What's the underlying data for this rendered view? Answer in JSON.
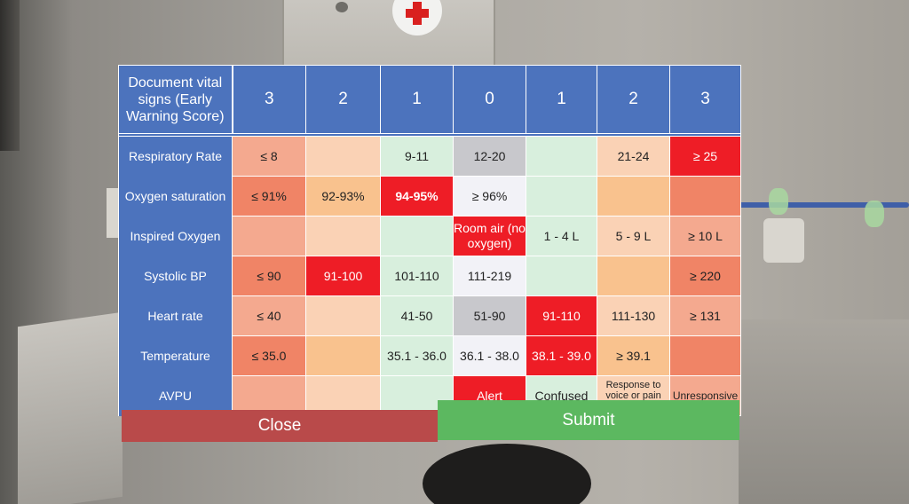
{
  "header": {
    "title": "Document vital signs (Early Warning Score)",
    "scores": [
      "3",
      "2",
      "1",
      "0",
      "1",
      "2",
      "3"
    ]
  },
  "rows": [
    {
      "label": "Respiratory Rate",
      "cells": [
        "≤ 8",
        "",
        "9-11",
        "12-20",
        "",
        "21-24",
        "≥ 25"
      ]
    },
    {
      "label": "Oxygen saturation",
      "cells": [
        "≤ 91%",
        "92-93%",
        "94-95%",
        "≥ 96%",
        "",
        "",
        ""
      ]
    },
    {
      "label": "Inspired Oxygen",
      "cells": [
        "",
        "",
        "",
        "Room air (no oxygen)",
        "1 - 4 L",
        "5 - 9 L",
        "≥ 10 L"
      ]
    },
    {
      "label": "Systolic BP",
      "cells": [
        "≤ 90",
        "91-100",
        "101-110",
        "111-219",
        "",
        "",
        "≥ 220"
      ]
    },
    {
      "label": "Heart rate",
      "cells": [
        "≤ 40",
        "",
        "41-50",
        "51-90",
        "91-110",
        "111-130",
        "≥ 131"
      ]
    },
    {
      "label": "Temperature",
      "cells": [
        "≤ 35.0",
        "",
        "35.1 - 36.0",
        "36.1 - 38.0",
        "38.1 - 39.0",
        "≥ 39.1",
        ""
      ]
    },
    {
      "label": "AVPU",
      "cells": [
        "",
        "",
        "",
        "Alert",
        "Confused",
        "Response to voice or pain only",
        "Unresponsive"
      ]
    }
  ],
  "buttons": {
    "close": "Close",
    "submit": "Submit"
  },
  "colors": {
    "header_blue": "#4c73bd",
    "selected_red": "#ee1d26",
    "close_red": "#b94a4a",
    "submit_green": "#5cb860"
  }
}
